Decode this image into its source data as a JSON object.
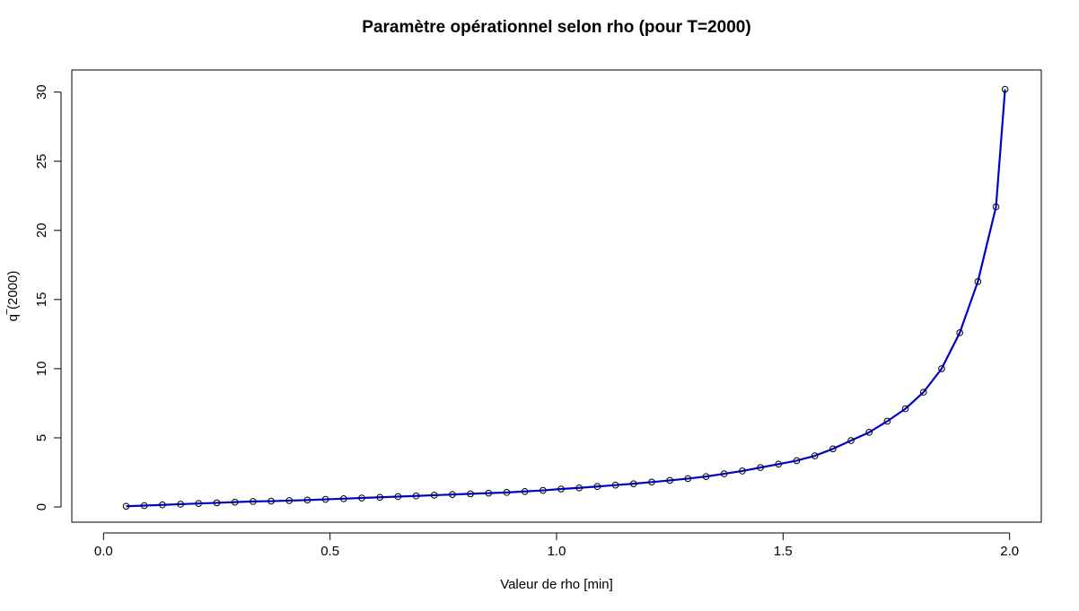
{
  "chart_data": {
    "type": "line",
    "title": "Paramètre opérationnel selon rho (pour T=2000)",
    "xlabel": "Valeur de rho [min]",
    "ylabel": "q‾(2000)",
    "xlim": [
      -0.07,
      2.07
    ],
    "ylim": [
      -1.1,
      31.6
    ],
    "xticks": [
      "0.0",
      "0.5",
      "1.0",
      "1.5",
      "2.0"
    ],
    "yticks": [
      "0",
      "5",
      "10",
      "15",
      "20",
      "25",
      "30"
    ],
    "grid": false,
    "legend": "none",
    "series_color": "#0000cc",
    "marker_color": "#000000",
    "x": [
      0.05,
      0.09,
      0.13,
      0.17,
      0.21,
      0.25,
      0.29,
      0.33,
      0.37,
      0.41,
      0.45,
      0.49,
      0.53,
      0.57,
      0.61,
      0.65,
      0.69,
      0.73,
      0.77,
      0.81,
      0.85,
      0.89,
      0.93,
      0.97,
      1.01,
      1.05,
      1.09,
      1.13,
      1.17,
      1.21,
      1.25,
      1.29,
      1.33,
      1.37,
      1.41,
      1.45,
      1.49,
      1.53,
      1.57,
      1.61,
      1.65,
      1.69,
      1.73,
      1.77,
      1.81,
      1.85,
      1.89,
      1.93,
      1.97,
      1.99
    ],
    "y": [
      0.05,
      0.1,
      0.15,
      0.2,
      0.25,
      0.3,
      0.35,
      0.4,
      0.42,
      0.46,
      0.5,
      0.55,
      0.6,
      0.65,
      0.7,
      0.75,
      0.8,
      0.85,
      0.9,
      0.95,
      1.0,
      1.05,
      1.12,
      1.2,
      1.3,
      1.38,
      1.48,
      1.58,
      1.68,
      1.8,
      1.92,
      2.05,
      2.2,
      2.4,
      2.6,
      2.85,
      3.1,
      3.35,
      3.7,
      4.2,
      4.8,
      5.4,
      6.2,
      7.1,
      8.3,
      10.0,
      12.6,
      16.3,
      21.7,
      30.2
    ]
  }
}
